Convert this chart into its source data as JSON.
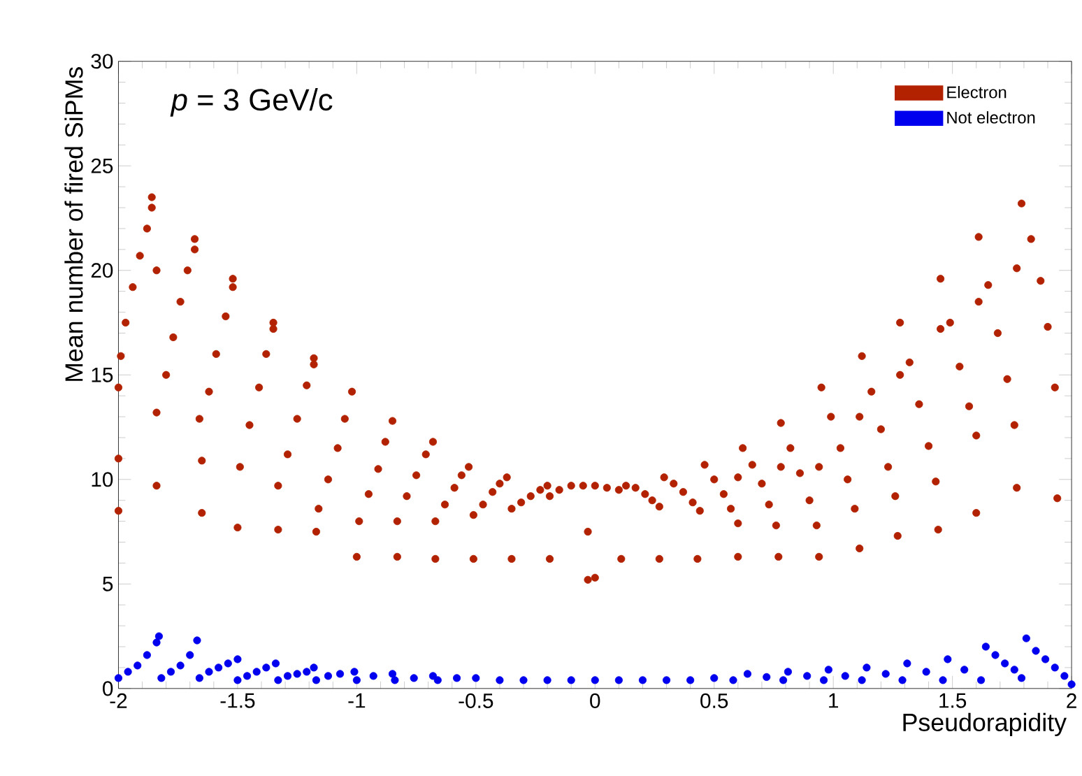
{
  "chart_data": {
    "type": "scatter",
    "xlabel": "Pseudorapidity",
    "ylabel": "Mean number of fired SiPMs",
    "annotations": [
      "*p* = 3 GeV/c"
    ],
    "xlim": [
      -2,
      2
    ],
    "ylim": [
      0,
      30
    ],
    "xticks": [
      -2,
      -1.5,
      -1,
      -0.5,
      0,
      0.5,
      1,
      1.5,
      2
    ],
    "yticks": [
      0,
      5,
      10,
      15,
      20,
      25,
      30
    ],
    "legend": "top right",
    "marker": "circle",
    "series": [
      {
        "name": "Electron",
        "color": "#b22200",
        "x": [
          -2.0,
          -2.0,
          -2.0,
          -1.99,
          -1.97,
          -1.94,
          -1.91,
          -1.88,
          -1.86,
          -1.86,
          -1.84,
          -1.84,
          -1.84,
          -1.8,
          -1.77,
          -1.74,
          -1.71,
          -1.68,
          -1.68,
          -1.66,
          -1.65,
          -1.65,
          -1.62,
          -1.59,
          -1.55,
          -1.52,
          -1.52,
          -1.5,
          -1.49,
          -1.45,
          -1.41,
          -1.38,
          -1.35,
          -1.35,
          -1.33,
          -1.33,
          -1.29,
          -1.25,
          -1.21,
          -1.18,
          -1.18,
          -1.17,
          -1.16,
          -1.12,
          -1.08,
          -1.05,
          -1.02,
          -1.0,
          -0.99,
          -0.95,
          -0.91,
          -0.88,
          -0.85,
          -0.83,
          -0.83,
          -0.79,
          -0.75,
          -0.71,
          -0.68,
          -0.67,
          -0.67,
          -0.63,
          -0.59,
          -0.56,
          -0.53,
          -0.51,
          -0.51,
          -0.47,
          -0.43,
          -0.4,
          -0.37,
          -0.35,
          -0.35,
          -0.31,
          -0.27,
          -0.23,
          -0.2,
          -0.19,
          -0.19,
          -0.15,
          -0.1,
          -0.05,
          0.0,
          0.05,
          0.1,
          -0.03,
          -0.03,
          0.0,
          0.11,
          0.13,
          0.17,
          0.21,
          0.24,
          0.27,
          0.27,
          0.29,
          0.33,
          0.37,
          0.41,
          0.44,
          0.43,
          0.46,
          0.5,
          0.54,
          0.57,
          0.6,
          0.6,
          0.6,
          0.62,
          0.66,
          0.7,
          0.73,
          0.76,
          0.77,
          0.78,
          0.78,
          0.82,
          0.86,
          0.9,
          0.93,
          0.94,
          0.94,
          0.95,
          0.99,
          1.03,
          1.06,
          1.09,
          1.11,
          1.11,
          1.12,
          1.16,
          1.2,
          1.23,
          1.26,
          1.27,
          1.28,
          1.28,
          1.32,
          1.36,
          1.4,
          1.43,
          1.44,
          1.45,
          1.45,
          1.49,
          1.53,
          1.57,
          1.6,
          1.6,
          1.61,
          1.61,
          1.65,
          1.69,
          1.73,
          1.76,
          1.77,
          1.77,
          1.79,
          1.83,
          1.87,
          1.9,
          1.93,
          1.94
        ],
        "values": [
          8.5,
          11.0,
          14.4,
          15.9,
          17.5,
          19.2,
          20.7,
          22.0,
          23.0,
          23.5,
          20.0,
          13.2,
          9.7,
          15.0,
          16.8,
          18.5,
          20.0,
          21.0,
          21.5,
          12.9,
          10.9,
          8.4,
          14.2,
          16.0,
          17.8,
          19.2,
          19.6,
          7.7,
          10.6,
          12.6,
          14.4,
          16.0,
          17.2,
          17.5,
          9.7,
          7.6,
          11.2,
          12.9,
          14.5,
          15.5,
          15.8,
          7.5,
          8.6,
          10.0,
          11.5,
          12.9,
          14.2,
          6.3,
          8.0,
          9.3,
          10.5,
          11.8,
          12.8,
          6.3,
          8.0,
          9.2,
          10.2,
          11.2,
          11.8,
          6.2,
          8.0,
          8.8,
          9.6,
          10.2,
          10.6,
          6.2,
          8.3,
          8.8,
          9.4,
          9.8,
          10.1,
          6.2,
          8.6,
          8.9,
          9.2,
          9.5,
          9.7,
          6.2,
          9.2,
          9.5,
          9.7,
          9.7,
          9.7,
          9.6,
          9.5,
          7.5,
          5.2,
          5.3,
          6.2,
          9.7,
          9.6,
          9.3,
          9.0,
          8.7,
          6.2,
          10.1,
          9.8,
          9.4,
          8.9,
          8.5,
          6.2,
          10.7,
          10.0,
          9.3,
          8.6,
          7.9,
          6.3,
          10.1,
          11.5,
          10.7,
          9.8,
          8.8,
          7.8,
          6.3,
          10.6,
          12.7,
          11.5,
          10.3,
          9.0,
          7.8,
          6.3,
          10.6,
          14.4,
          13.0,
          11.5,
          10.0,
          8.6,
          6.7,
          13.0,
          15.9,
          14.2,
          12.4,
          10.6,
          9.2,
          7.3,
          15.0,
          17.5,
          15.6,
          13.6,
          11.6,
          9.9,
          7.6,
          17.2,
          19.6,
          17.5,
          15.4,
          13.5,
          12.1,
          8.4,
          18.5,
          21.6,
          19.3,
          17.0,
          14.8,
          12.6,
          9.6,
          20.1,
          23.2,
          21.5,
          19.5,
          17.3,
          14.4,
          9.1
        ]
      },
      {
        "name": "Not electron",
        "color": "#0000ee",
        "x": [
          -2.0,
          -1.96,
          -1.92,
          -1.88,
          -1.84,
          -1.83,
          -1.82,
          -1.78,
          -1.74,
          -1.7,
          -1.67,
          -1.66,
          -1.62,
          -1.58,
          -1.54,
          -1.5,
          -1.5,
          -1.46,
          -1.42,
          -1.38,
          -1.34,
          -1.33,
          -1.29,
          -1.25,
          -1.21,
          -1.18,
          -1.17,
          -1.12,
          -1.07,
          -1.01,
          -1.0,
          -0.93,
          -0.85,
          -0.84,
          -0.76,
          -0.68,
          -0.66,
          -0.58,
          -0.5,
          -0.4,
          -0.3,
          -0.2,
          -0.1,
          0.0,
          0.1,
          0.2,
          0.3,
          0.4,
          0.5,
          0.58,
          0.64,
          0.72,
          0.79,
          0.81,
          0.89,
          0.96,
          0.98,
          1.05,
          1.12,
          1.14,
          1.22,
          1.29,
          1.31,
          1.39,
          1.46,
          1.48,
          1.55,
          1.62,
          1.64,
          1.68,
          1.72,
          1.76,
          1.79,
          1.81,
          1.85,
          1.89,
          1.93,
          1.97,
          2.0
        ],
        "values": [
          0.5,
          0.8,
          1.1,
          1.6,
          2.2,
          2.5,
          0.5,
          0.8,
          1.1,
          1.6,
          2.3,
          0.5,
          0.8,
          1.0,
          1.2,
          1.4,
          0.4,
          0.6,
          0.8,
          1.0,
          1.2,
          0.4,
          0.6,
          0.7,
          0.8,
          1.0,
          0.4,
          0.6,
          0.7,
          0.8,
          0.4,
          0.6,
          0.7,
          0.4,
          0.5,
          0.6,
          0.4,
          0.5,
          0.5,
          0.4,
          0.4,
          0.4,
          0.4,
          0.4,
          0.4,
          0.4,
          0.4,
          0.4,
          0.5,
          0.4,
          0.7,
          0.55,
          0.4,
          0.8,
          0.6,
          0.4,
          0.9,
          0.6,
          0.4,
          1.0,
          0.7,
          0.4,
          1.2,
          0.8,
          0.4,
          1.4,
          0.9,
          0.4,
          2.0,
          1.6,
          1.2,
          0.9,
          0.5,
          2.4,
          1.8,
          1.4,
          1.0,
          0.6,
          0.2
        ]
      }
    ]
  }
}
